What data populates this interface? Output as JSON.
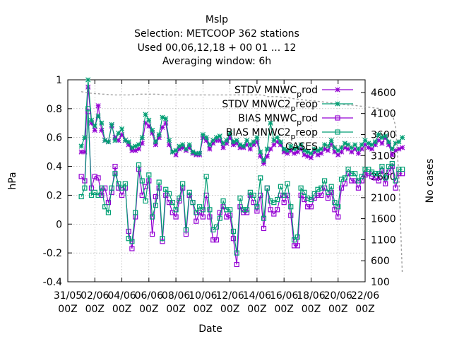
{
  "title_lines": [
    "Mslp",
    "Selection: METCOOP    362 stations",
    "Used  00,06,12,18 + 00 01 ... 12",
    "Averaging window:  6h"
  ],
  "chart_data": {
    "type": "line",
    "xlabel": "Date",
    "ylabel": "hPa",
    "y2label": "No cases",
    "x_range": [
      "31/05 00Z",
      "22/06 00Z"
    ],
    "ylim": [
      -0.4,
      1.0
    ],
    "y2lim": [
      100,
      4900
    ],
    "yticks": [
      "-0.4",
      "-0.2",
      "0",
      "0.2",
      "0.4",
      "0.6",
      "0.8",
      "1"
    ],
    "y2ticks": [
      "100",
      "600",
      "1100",
      "1600",
      "2100",
      "2600",
      "3100",
      "3600",
      "4100",
      "4600"
    ],
    "xticks": [
      {
        "top": "31/05",
        "bottom": "00Z"
      },
      {
        "top": "02/06",
        "bottom": "00Z"
      },
      {
        "top": "04/06",
        "bottom": "00Z"
      },
      {
        "top": "06/06",
        "bottom": "00Z"
      },
      {
        "top": "08/06",
        "bottom": "00Z"
      },
      {
        "top": "10/06",
        "bottom": "00Z"
      },
      {
        "top": "12/06",
        "bottom": "00Z"
      },
      {
        "top": "14/06",
        "bottom": "00Z"
      },
      {
        "top": "16/06",
        "bottom": "00Z"
      },
      {
        "top": "18/06",
        "bottom": "00Z"
      },
      {
        "top": "20/06",
        "bottom": "00Z"
      },
      {
        "top": "22/06",
        "bottom": "00Z"
      }
    ],
    "grid": true,
    "legend_position": "top-right",
    "series_step_hours": 6,
    "series_start": "01/06 00Z",
    "series": [
      {
        "name": "STDV MNWC_prod",
        "legend_base": "STDV MNWC",
        "legend_sub": "p",
        "legend_tail": "rod",
        "color": "#9400d3",
        "marker": "star",
        "axis": "y1",
        "values": [
          0.5,
          0.5,
          0.95,
          0.7,
          0.65,
          0.82,
          0.65,
          0.58,
          0.57,
          0.68,
          0.6,
          0.58,
          0.62,
          0.58,
          0.55,
          0.51,
          0.51,
          0.52,
          0.56,
          0.7,
          0.68,
          0.63,
          0.55,
          0.6,
          0.67,
          0.7,
          0.55,
          0.5,
          0.48,
          0.52,
          0.53,
          0.51,
          0.53,
          0.49,
          0.48,
          0.48,
          0.6,
          0.58,
          0.52,
          0.56,
          0.58,
          0.58,
          0.53,
          0.56,
          0.6,
          0.55,
          0.56,
          0.53,
          0.53,
          0.55,
          0.52,
          0.55,
          0.57,
          0.47,
          0.42,
          0.47,
          0.52,
          0.55,
          0.57,
          0.55,
          0.5,
          0.49,
          0.51,
          0.49,
          0.5,
          0.52,
          0.48,
          0.47,
          0.46,
          0.5,
          0.48,
          0.49,
          0.52,
          0.51,
          0.55,
          0.5,
          0.48,
          0.5,
          0.53,
          0.52,
          0.5,
          0.52,
          0.49,
          0.52,
          0.55,
          0.53,
          0.52,
          0.55,
          0.58,
          0.56,
          0.6,
          0.55,
          0.48,
          0.51,
          0.52,
          0.53
        ]
      },
      {
        "name": "STDV MNWC2_preop",
        "legend_base": "STDV MNWC2",
        "legend_sub": "p",
        "legend_tail": "reop",
        "color": "#009e73",
        "marker": "star",
        "axis": "y1",
        "values": [
          0.54,
          0.6,
          1.0,
          0.72,
          0.68,
          0.75,
          0.7,
          0.58,
          0.57,
          0.69,
          0.58,
          0.63,
          0.66,
          0.58,
          0.57,
          0.53,
          0.54,
          0.55,
          0.6,
          0.76,
          0.72,
          0.65,
          0.57,
          0.62,
          0.74,
          0.73,
          0.58,
          0.5,
          0.51,
          0.54,
          0.55,
          0.52,
          0.55,
          0.5,
          0.49,
          0.49,
          0.62,
          0.6,
          0.55,
          0.58,
          0.6,
          0.61,
          0.56,
          0.58,
          0.63,
          0.57,
          0.58,
          0.55,
          0.54,
          0.58,
          0.55,
          0.57,
          0.6,
          0.5,
          0.44,
          0.52,
          0.7,
          0.58,
          0.6,
          0.57,
          0.52,
          0.51,
          0.54,
          0.52,
          0.53,
          0.55,
          0.51,
          0.5,
          0.49,
          0.52,
          0.51,
          0.52,
          0.55,
          0.54,
          0.58,
          0.53,
          0.51,
          0.53,
          0.56,
          0.55,
          0.53,
          0.55,
          0.52,
          0.55,
          0.58,
          0.56,
          0.55,
          0.57,
          0.62,
          0.6,
          0.61,
          0.57,
          0.52,
          0.56,
          0.57,
          0.6
        ]
      },
      {
        "name": "BIAS MNWC_prod",
        "legend_base": "BIAS MNWC",
        "legend_sub": "p",
        "legend_tail": "rod",
        "color": "#9400d3",
        "marker": "square",
        "axis": "y1",
        "values": [
          0.33,
          0.3,
          0.78,
          0.25,
          0.33,
          0.32,
          0.2,
          0.25,
          0.15,
          0.22,
          0.4,
          0.25,
          0.2,
          0.25,
          -0.05,
          -0.17,
          0.05,
          0.38,
          0.2,
          0.26,
          0.3,
          -0.07,
          0.19,
          0.25,
          -0.12,
          0.2,
          0.15,
          0.08,
          0.05,
          0.16,
          0.25,
          -0.07,
          0.2,
          0.15,
          0.02,
          0.08,
          0.05,
          0.2,
          0.05,
          -0.11,
          -0.11,
          0.08,
          0.12,
          0.05,
          0.06,
          -0.1,
          -0.28,
          0.12,
          0.08,
          0.08,
          0.2,
          0.15,
          0.09,
          0.2,
          -0.03,
          0.25,
          0.1,
          0.07,
          0.1,
          0.2,
          0.15,
          0.2,
          0.06,
          -0.15,
          -0.15,
          0.2,
          0.17,
          0.12,
          0.12,
          0.18,
          0.2,
          0.2,
          0.25,
          0.18,
          0.22,
          0.1,
          0.05,
          0.25,
          0.28,
          0.35,
          0.3,
          0.3,
          0.25,
          0.3,
          0.34,
          0.35,
          0.33,
          0.32,
          0.3,
          0.37,
          0.28,
          0.36,
          0.4,
          0.25,
          0.35,
          0.35
        ]
      },
      {
        "name": "BIAS MNWC2_preop",
        "legend_base": "BIAS MNWC2",
        "legend_sub": "p",
        "legend_tail": "reop",
        "color": "#009e73",
        "marker": "square",
        "axis": "y1",
        "values": [
          0.19,
          0.25,
          0.8,
          0.2,
          0.22,
          0.2,
          0.25,
          0.12,
          0.08,
          0.25,
          0.35,
          0.28,
          0.25,
          0.28,
          -0.1,
          -0.12,
          0.08,
          0.41,
          0.3,
          0.16,
          0.34,
          0.05,
          0.13,
          0.29,
          -0.1,
          0.24,
          0.21,
          0.15,
          0.1,
          0.18,
          0.28,
          -0.04,
          0.22,
          0.15,
          0.08,
          0.12,
          0.1,
          0.33,
          0.1,
          -0.04,
          -0.02,
          0.04,
          0.16,
          0.1,
          0.1,
          -0.05,
          -0.2,
          0.18,
          0.1,
          0.1,
          0.22,
          0.2,
          0.12,
          0.32,
          0.04,
          0.25,
          0.16,
          0.15,
          0.17,
          0.26,
          0.2,
          0.28,
          0.12,
          -0.11,
          -0.09,
          0.25,
          0.22,
          0.18,
          0.17,
          0.21,
          0.24,
          0.25,
          0.3,
          0.22,
          0.26,
          0.15,
          0.12,
          0.31,
          0.32,
          0.38,
          0.35,
          0.35,
          0.3,
          0.33,
          0.38,
          0.38,
          0.36,
          0.35,
          0.35,
          0.4,
          0.32,
          0.4,
          0.42,
          0.3,
          0.38,
          0.38
        ]
      },
      {
        "name": "CASES",
        "legend_base": "CASES",
        "legend_sub": "",
        "legend_tail": "",
        "color": "#a0a0a0",
        "marker": "none",
        "dashed": true,
        "axis": "y2",
        "values": [
          4620,
          4600,
          4590,
          4580,
          4575,
          4570,
          4560,
          4560,
          4550,
          4545,
          4540,
          4540,
          4540,
          4540,
          4540,
          4545,
          4550,
          4560,
          4560,
          4560,
          4560,
          4560,
          4560,
          4555,
          4550,
          4540,
          4540,
          4540,
          4540,
          4540,
          4540,
          4540,
          4540,
          4540,
          4540,
          4540,
          4540,
          4540,
          4540,
          4540,
          4540,
          4540,
          4540,
          4540,
          4540,
          4540,
          4540,
          4540,
          4540,
          4540,
          4540,
          4540,
          4540,
          4540,
          4530,
          4500,
          4500,
          4500,
          4500,
          4490,
          4480,
          4480,
          4460,
          4450,
          4440,
          4430,
          4420,
          4410,
          4400,
          4400,
          4390,
          4380,
          4370,
          4360,
          4350,
          4340,
          4330,
          4320,
          4310,
          4300,
          4300,
          4290,
          4280,
          4270,
          4260,
          4250,
          4240,
          4230,
          4220,
          4200,
          4180,
          4160,
          4100,
          3800,
          2600,
          300
        ]
      }
    ]
  }
}
